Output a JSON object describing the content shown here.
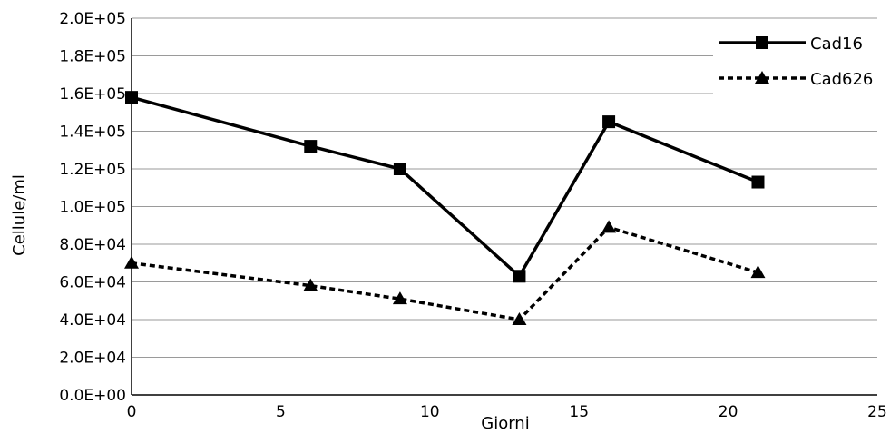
{
  "chart_data": {
    "type": "line",
    "title": "",
    "xlabel": "Giorni",
    "ylabel": "Cellule/ml",
    "xlim": [
      0,
      25
    ],
    "ylim": [
      0,
      200000
    ],
    "x_ticks": [
      "0",
      "5",
      "10",
      "15",
      "20",
      "25"
    ],
    "y_ticks": [
      "0.0E+00",
      "2.0E+04",
      "4.0E+04",
      "6.0E+04",
      "8.0E+04",
      "1.0E+05",
      "1.2E+05",
      "1.4E+05",
      "1.6E+05",
      "1.8E+05",
      "2.0E+05"
    ],
    "grid": "horizontal",
    "legend_position": "top-right",
    "x": [
      0,
      6,
      9,
      13,
      16,
      21
    ],
    "series": [
      {
        "name": "Cad16",
        "values": [
          158000,
          132000,
          120000,
          63000,
          145000,
          113000
        ],
        "line_style": "solid",
        "marker": "square",
        "color": "#000000"
      },
      {
        "name": "Cad626",
        "values": [
          70000,
          58000,
          51000,
          40000,
          89000,
          65000
        ],
        "line_style": "dashed",
        "marker": "triangle",
        "color": "#000000"
      }
    ]
  }
}
